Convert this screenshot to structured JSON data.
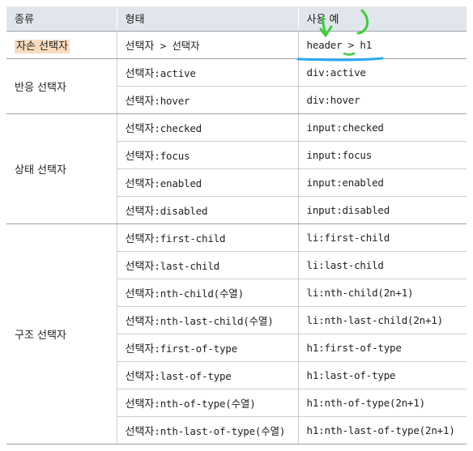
{
  "header": {
    "col1": "종류",
    "col2": "형태",
    "col3": "사용 예"
  },
  "groups": [
    {
      "category": "자손 선택자",
      "highlighted": true,
      "rows": [
        {
          "prefix": "선택자",
          "form": " > 선택자",
          "example": "header > h1"
        }
      ]
    },
    {
      "category": "반응 선택자",
      "rows": [
        {
          "prefix": "선택자",
          "form": ":active",
          "example": "div:active"
        },
        {
          "prefix": "선택자",
          "form": ":hover",
          "example": "div:hover"
        }
      ]
    },
    {
      "category": "상태 선택자",
      "rows": [
        {
          "prefix": "선택자",
          "form": ":checked",
          "example": "input:checked"
        },
        {
          "prefix": "선택자",
          "form": ":focus",
          "example": "input:focus"
        },
        {
          "prefix": "선택자",
          "form": ":enabled",
          "example": "input:enabled"
        },
        {
          "prefix": "선택자",
          "form": ":disabled",
          "example": "input:disabled"
        }
      ]
    },
    {
      "category": "구조 선택자",
      "rows": [
        {
          "prefix": "선택자",
          "form": ":first-child",
          "example": "li:first-child"
        },
        {
          "prefix": "선택자",
          "form": ":last-child",
          "example": "li:last-child"
        },
        {
          "prefix": "선택자",
          "form": ":nth-child(수열)",
          "example": "li:nth-child(2n+1)"
        },
        {
          "prefix": "선택자",
          "form": ":nth-last-child(수열)",
          "example": "li:nth-last-child(2n+1)"
        },
        {
          "prefix": "선택자",
          "form": ":first-of-type",
          "example": "h1:first-of-type"
        },
        {
          "prefix": "선택자",
          "form": ":last-of-type",
          "example": "h1:last-of-type"
        },
        {
          "prefix": "선택자",
          "form": ":nth-of-type(수열)",
          "example": "h1:nth-of-type(2n+1)"
        },
        {
          "prefix": "선택자",
          "form": ":nth-last-of-type(수열)",
          "example": "h1:nth-last-of-type(2n+1)"
        }
      ]
    }
  ],
  "colors": {
    "header_bg": "#e1e6ec",
    "highlight": "#f9dcc0",
    "annotation_green": "#3ccd3c",
    "annotation_blue": "#2aa8f0"
  }
}
